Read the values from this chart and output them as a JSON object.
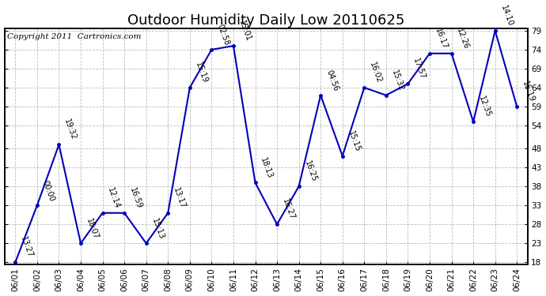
{
  "title": "Outdoor Humidity Daily Low 20110625",
  "copyright": "Copyright 2011  Cartronics.com",
  "x_labels": [
    "06/01",
    "06/02",
    "06/03",
    "06/04",
    "06/05",
    "06/06",
    "06/07",
    "06/08",
    "06/09",
    "06/10",
    "06/11",
    "06/12",
    "06/13",
    "06/14",
    "06/15",
    "06/16",
    "06/17",
    "06/18",
    "06/19",
    "06/20",
    "06/21",
    "06/22",
    "06/23",
    "06/24"
  ],
  "x_indices": [
    0,
    1,
    2,
    3,
    4,
    5,
    6,
    7,
    8,
    9,
    10,
    11,
    12,
    13,
    14,
    15,
    16,
    17,
    18,
    19,
    20,
    21,
    22,
    23
  ],
  "y_values": [
    18,
    33,
    49,
    23,
    31,
    31,
    23,
    31,
    64,
    74,
    75,
    39,
    28,
    38,
    62,
    46,
    64,
    62,
    65,
    73,
    73,
    55,
    79,
    59
  ],
  "time_labels": [
    "13:27",
    "00:00",
    "19:32",
    "18:07",
    "12:14",
    "16:59",
    "15:13",
    "13:17",
    "15:19",
    "02:58",
    "15:01",
    "18:13",
    "16:27",
    "16:25",
    "04:56",
    "15:15",
    "16:02",
    "15:32",
    "17:57",
    "16:17",
    "12:26",
    "12:35",
    "14:10",
    "16:19"
  ],
  "line_color": "#0000bb",
  "marker_color": "#0000bb",
  "bg_color": "#ffffff",
  "grid_color": "#bbbbbb",
  "ylim_min": 18,
  "ylim_max": 79,
  "yticks": [
    18,
    23,
    28,
    33,
    38,
    43,
    48,
    54,
    59,
    64,
    69,
    74,
    79
  ],
  "title_fontsize": 13,
  "copyright_fontsize": 7.5,
  "label_fontsize": 7,
  "tick_label_fontsize": 7.5
}
